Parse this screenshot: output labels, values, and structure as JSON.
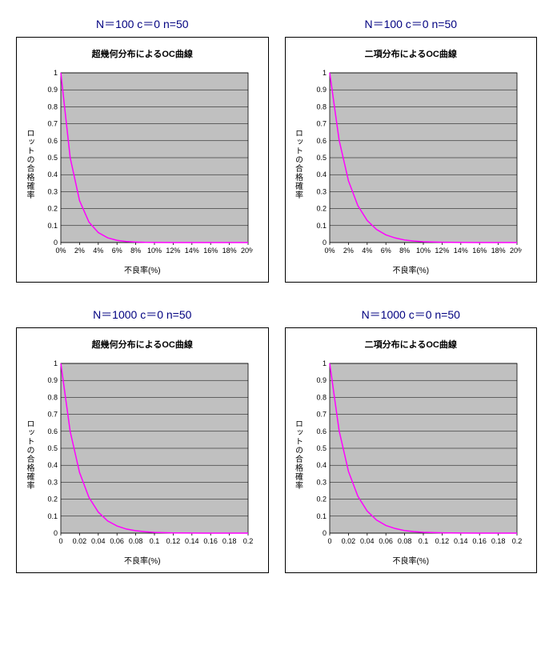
{
  "layout": {
    "rows": 2,
    "cols": 2
  },
  "charts": [
    {
      "outer_title": "N＝100  c＝0  n=50",
      "inner_title": "超幾何分布によるOC曲線",
      "ylabel": "ロットの合格確率",
      "xlabel": "不良率(%)",
      "plot_bg": "#c0c0c0",
      "frame_bg": "#ffffff",
      "grid_color": "#000000",
      "series_color": "#ff00ff",
      "xlim": [
        0,
        20
      ],
      "ylim": [
        0,
        1
      ],
      "x_ticks": [
        "0%",
        "2%",
        "4%",
        "6%",
        "8%",
        "10%",
        "12%",
        "14%",
        "16%",
        "18%",
        "20%"
      ],
      "x_tick_vals": [
        0,
        2,
        4,
        6,
        8,
        10,
        12,
        14,
        16,
        18,
        20
      ],
      "y_ticks": [
        0,
        0.1,
        0.2,
        0.3,
        0.4,
        0.5,
        0.6,
        0.7,
        0.8,
        0.9,
        1
      ],
      "data": {
        "x": [
          0,
          1,
          2,
          3,
          4,
          5,
          6,
          7,
          8,
          9,
          10,
          12,
          14,
          16,
          18,
          20
        ],
        "y": [
          1.0,
          0.5,
          0.247,
          0.121,
          0.059,
          0.028,
          0.013,
          0.006,
          0.003,
          0.001,
          0.0006,
          0.0001,
          0,
          0,
          0,
          0
        ]
      }
    },
    {
      "outer_title": "N＝100  c＝0  n=50",
      "inner_title": "二項分布によるOC曲線",
      "ylabel": "ロットの合格確率",
      "xlabel": "不良率(%)",
      "plot_bg": "#c0c0c0",
      "frame_bg": "#ffffff",
      "grid_color": "#000000",
      "series_color": "#ff00ff",
      "xlim": [
        0,
        20
      ],
      "ylim": [
        0,
        1
      ],
      "x_ticks": [
        "0%",
        "2%",
        "4%",
        "6%",
        "8%",
        "10%",
        "12%",
        "14%",
        "16%",
        "18%",
        "20%"
      ],
      "x_tick_vals": [
        0,
        2,
        4,
        6,
        8,
        10,
        12,
        14,
        16,
        18,
        20
      ],
      "y_ticks": [
        0,
        0.1,
        0.2,
        0.3,
        0.4,
        0.5,
        0.6,
        0.7,
        0.8,
        0.9,
        1
      ],
      "data": {
        "x": [
          0,
          1,
          2,
          3,
          4,
          5,
          6,
          7,
          8,
          9,
          10,
          12,
          14,
          16,
          18,
          20
        ],
        "y": [
          1.0,
          0.605,
          0.364,
          0.218,
          0.13,
          0.077,
          0.045,
          0.027,
          0.015,
          0.009,
          0.005,
          0.002,
          0.0005,
          0.0002,
          0,
          0
        ]
      }
    },
    {
      "outer_title": "N＝1000  c＝0  n=50",
      "inner_title": "超幾何分布によるOC曲線",
      "ylabel": "ロットの合格確率",
      "xlabel": "不良率(%)",
      "plot_bg": "#c0c0c0",
      "frame_bg": "#ffffff",
      "grid_color": "#000000",
      "series_color": "#ff00ff",
      "xlim": [
        0,
        0.2
      ],
      "ylim": [
        0,
        1
      ],
      "x_ticks": [
        "0",
        "0.02",
        "0.04",
        "0.06",
        "0.08",
        "0.1",
        "0.12",
        "0.14",
        "0.16",
        "0.18",
        "0.2"
      ],
      "x_tick_vals": [
        0,
        0.02,
        0.04,
        0.06,
        0.08,
        0.1,
        0.12,
        0.14,
        0.16,
        0.18,
        0.2
      ],
      "y_ticks": [
        0,
        0.1,
        0.2,
        0.3,
        0.4,
        0.5,
        0.6,
        0.7,
        0.8,
        0.9,
        1
      ],
      "data": {
        "x": [
          0,
          0.01,
          0.02,
          0.03,
          0.04,
          0.05,
          0.06,
          0.07,
          0.08,
          0.09,
          0.1,
          0.12,
          0.14,
          0.16,
          0.18,
          0.2
        ],
        "y": [
          1.0,
          0.599,
          0.357,
          0.211,
          0.124,
          0.072,
          0.042,
          0.024,
          0.014,
          0.008,
          0.004,
          0.001,
          0.0004,
          0.0001,
          0,
          0
        ]
      }
    },
    {
      "outer_title": "N＝1000  c＝0  n=50",
      "inner_title": "二項分布によるOC曲線",
      "ylabel": "ロットの合格確率",
      "xlabel": "不良率(%)",
      "plot_bg": "#c0c0c0",
      "frame_bg": "#ffffff",
      "grid_color": "#000000",
      "series_color": "#ff00ff",
      "xlim": [
        0,
        0.2
      ],
      "ylim": [
        0,
        1
      ],
      "x_ticks": [
        "0",
        "0.02",
        "0.04",
        "0.06",
        "0.08",
        "0.1",
        "0.12",
        "0.14",
        "0.16",
        "0.18",
        "0.2"
      ],
      "x_tick_vals": [
        0,
        0.02,
        0.04,
        0.06,
        0.08,
        0.1,
        0.12,
        0.14,
        0.16,
        0.18,
        0.2
      ],
      "y_ticks": [
        0,
        0.1,
        0.2,
        0.3,
        0.4,
        0.5,
        0.6,
        0.7,
        0.8,
        0.9,
        1
      ],
      "data": {
        "x": [
          0,
          0.01,
          0.02,
          0.03,
          0.04,
          0.05,
          0.06,
          0.07,
          0.08,
          0.09,
          0.1,
          0.12,
          0.14,
          0.16,
          0.18,
          0.2
        ],
        "y": [
          1.0,
          0.605,
          0.364,
          0.218,
          0.13,
          0.077,
          0.045,
          0.027,
          0.015,
          0.009,
          0.005,
          0.002,
          0.0005,
          0.0002,
          0,
          0
        ]
      }
    }
  ]
}
